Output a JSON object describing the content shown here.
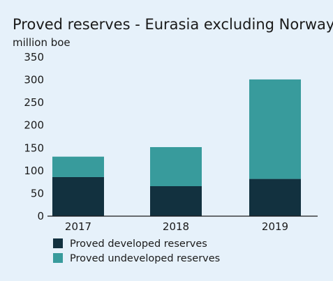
{
  "chart_data": {
    "type": "bar",
    "stacked": true,
    "title": "Proved reserves - Eurasia excluding Norway",
    "ylabel": "million boe",
    "xlabel": "",
    "categories": [
      "2017",
      "2018",
      "2019"
    ],
    "ylim": [
      0,
      350
    ],
    "yticks": [
      0,
      50,
      100,
      150,
      200,
      250,
      300,
      350
    ],
    "grid": false,
    "legend": "bottom-left",
    "series": [
      {
        "name": "Proved developed reserves",
        "color": "#12313f",
        "values": [
          86,
          66,
          82
        ]
      },
      {
        "name": "Proved undeveloped reserves",
        "color": "#389b9c",
        "values": [
          45,
          86,
          219
        ]
      }
    ]
  }
}
